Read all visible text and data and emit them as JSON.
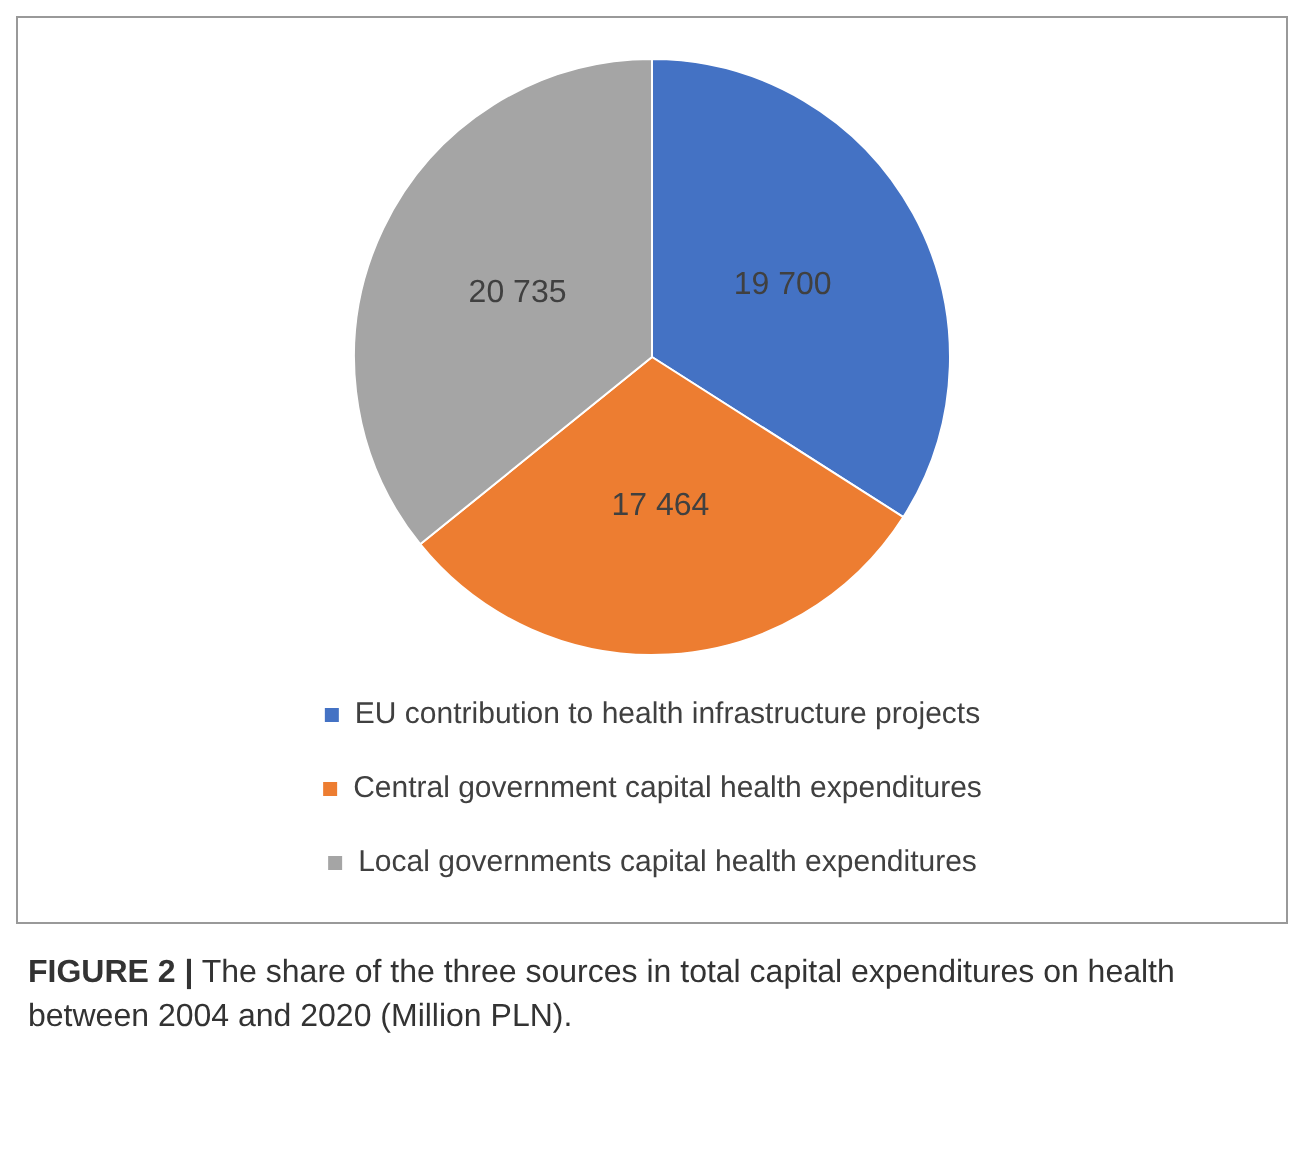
{
  "chart_data": {
    "type": "pie",
    "categories": [
      "EU contribution to health infrastructure projects",
      "Central government capital health expenditures",
      "Local governments capital health expenditures"
    ],
    "values": [
      19700,
      17464,
      20735
    ],
    "value_labels": [
      "19 700",
      "17 464",
      "20 735"
    ],
    "colors": [
      "#4472c4",
      "#ed7d31",
      "#a5a5a5"
    ],
    "legend": "bottom",
    "annotations": [
      "FIGURE 2 | The share of the three sources in total capital expenditures on health between 2004 and 2020 (Million PLN)."
    ]
  }
}
